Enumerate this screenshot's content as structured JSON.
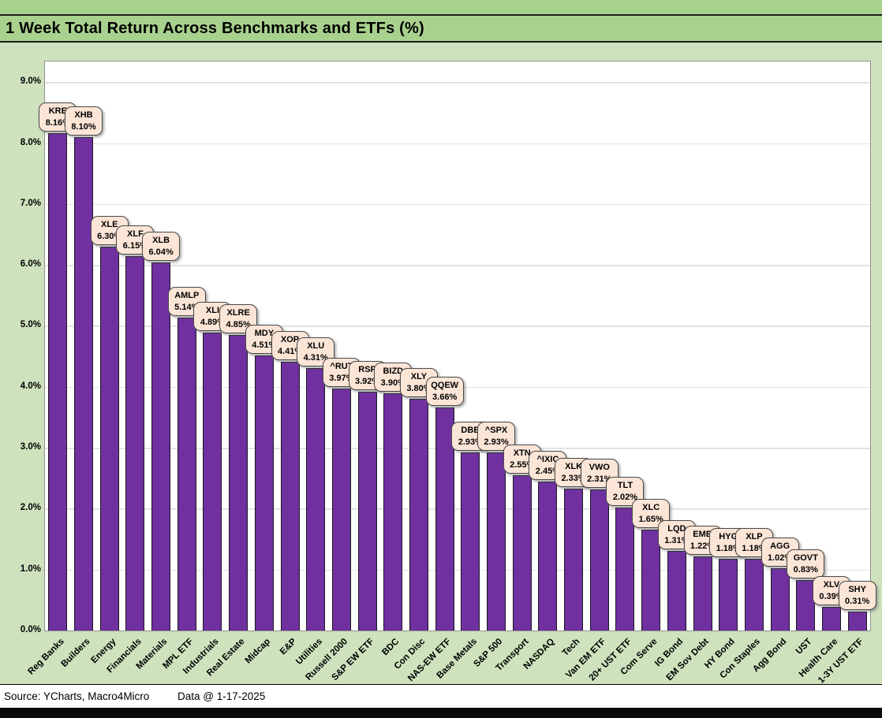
{
  "header": {
    "title": "1 Week Total Return Across Benchmarks and ETFs (%)"
  },
  "footer": {
    "source": "Source: YCharts, Macro4Micro",
    "data_date": "Data @ 1-17-2025"
  },
  "colors": {
    "bar_fill": "#7030a0",
    "bar_border": "#1a1a1e",
    "callout_fill": "#fbe5d6",
    "callout_border": "#4a4a4a",
    "background_green": "#cee2bd",
    "title_band_green": "#a9d18e",
    "plot_background": "#ffffff",
    "gridline": "#e3e3e3"
  },
  "chart_data": {
    "type": "bar",
    "title": "1 Week Total Return Across Benchmarks and ETFs (%)",
    "xlabel": "",
    "ylabel": "",
    "ylim": [
      0,
      9.34
    ],
    "grid": true,
    "legend": "none",
    "y_tick_labels": [
      "0.0%",
      "1.0%",
      "2.0%",
      "3.0%",
      "4.0%",
      "5.0%",
      "6.0%",
      "7.0%",
      "8.0%",
      "9.0%"
    ],
    "bars": [
      {
        "category": "Reg Banks",
        "ticker": "KRE",
        "value": 8.16,
        "label": "8.16%"
      },
      {
        "category": "Builders",
        "ticker": "XHB",
        "value": 8.1,
        "label": "8.10%"
      },
      {
        "category": "Energy",
        "ticker": "XLE",
        "value": 6.3,
        "label": "6.30%"
      },
      {
        "category": "Financials",
        "ticker": "XLF",
        "value": 6.15,
        "label": "6.15%"
      },
      {
        "category": "Materials",
        "ticker": "XLB",
        "value": 6.04,
        "label": "6.04%"
      },
      {
        "category": "MPL ETF",
        "ticker": "AMLP",
        "value": 5.14,
        "label": "5.14%"
      },
      {
        "category": "Industrials",
        "ticker": "XLI",
        "value": 4.89,
        "label": "4.89%"
      },
      {
        "category": "Real Estate",
        "ticker": "XLRE",
        "value": 4.85,
        "label": "4.85%"
      },
      {
        "category": "Midcap",
        "ticker": "MDY",
        "value": 4.51,
        "label": "4.51%"
      },
      {
        "category": "E&P",
        "ticker": "XOP",
        "value": 4.41,
        "label": "4.41%"
      },
      {
        "category": "Utilities",
        "ticker": "XLU",
        "value": 4.31,
        "label": "4.31%"
      },
      {
        "category": "Russell 2000",
        "ticker": "^RUT",
        "value": 3.97,
        "label": "3.97%"
      },
      {
        "category": "S&P EW ETF",
        "ticker": "RSP",
        "value": 3.92,
        "label": "3.92%"
      },
      {
        "category": "BDC",
        "ticker": "BIZD",
        "value": 3.9,
        "label": "3.90%"
      },
      {
        "category": "Con Disc",
        "ticker": "XLY",
        "value": 3.8,
        "label": "3.80%"
      },
      {
        "category": "NAS-EW ETF",
        "ticker": "QQEW",
        "value": 3.66,
        "label": "3.66%"
      },
      {
        "category": "Base Metals",
        "ticker": "DBB",
        "value": 2.93,
        "label": "2.93%"
      },
      {
        "category": "S&P 500",
        "ticker": "^SPX",
        "value": 2.93,
        "label": "2.93%"
      },
      {
        "category": "Transport",
        "ticker": "XTN",
        "value": 2.55,
        "label": "2.55%"
      },
      {
        "category": "NASDAQ",
        "ticker": "^IXIC",
        "value": 2.45,
        "label": "2.45%"
      },
      {
        "category": "Tech",
        "ticker": "XLK",
        "value": 2.33,
        "label": "2.33%"
      },
      {
        "category": "Van EM ETF",
        "ticker": "VWO",
        "value": 2.31,
        "label": "2.31%"
      },
      {
        "category": "20+ UST ETF",
        "ticker": "TLT",
        "value": 2.02,
        "label": "2.02%"
      },
      {
        "category": "Com Serve",
        "ticker": "XLC",
        "value": 1.65,
        "label": "1.65%"
      },
      {
        "category": "IG Bond",
        "ticker": "LQD",
        "value": 1.31,
        "label": "1.31%"
      },
      {
        "category": "EM Sov Debt",
        "ticker": "EMB",
        "value": 1.22,
        "label": "1.22%"
      },
      {
        "category": "HY Bond",
        "ticker": "HYG",
        "value": 1.18,
        "label": "1.18%"
      },
      {
        "category": "Con Staples",
        "ticker": "XLP",
        "value": 1.18,
        "label": "1.18%"
      },
      {
        "category": "Agg Bond",
        "ticker": "AGG",
        "value": 1.02,
        "label": "1.02%"
      },
      {
        "category": "UST",
        "ticker": "GOVT",
        "value": 0.83,
        "label": "0.83%"
      },
      {
        "category": "Health Care",
        "ticker": "XLV",
        "value": 0.39,
        "label": "0.39%"
      },
      {
        "category": "1-3Y UST ETF",
        "ticker": "SHY",
        "value": 0.31,
        "label": "0.31%"
      }
    ]
  }
}
